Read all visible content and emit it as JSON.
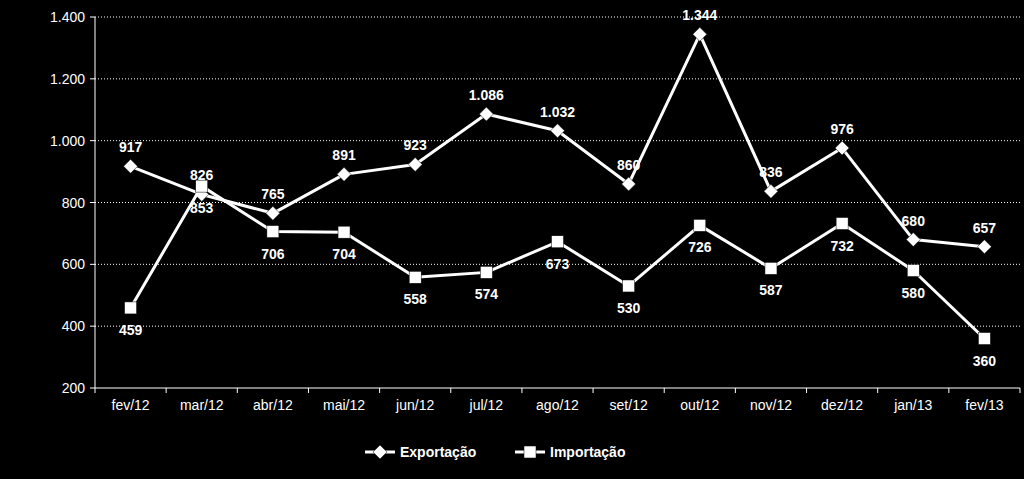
{
  "chart_data": {
    "type": "line",
    "categories": [
      "fev/12",
      "mar/12",
      "abr/12",
      "mai/12",
      "jun/12",
      "jul/12",
      "ago/12",
      "set/12",
      "out/12",
      "nov/12",
      "dez/12",
      "jan/13",
      "fev/13"
    ],
    "series": [
      {
        "name": "Exportação",
        "color": "#ffffff",
        "marker": "diamond",
        "values": [
          917,
          826,
          765,
          891,
          923,
          1086,
          1032,
          860,
          1344,
          836,
          976,
          680,
          657
        ],
        "value_labels": [
          "917",
          "826",
          "765",
          "891",
          "923",
          "1.086",
          "1.032",
          "860",
          "1.344",
          "836",
          "976",
          "680",
          "657"
        ]
      },
      {
        "name": "Importação",
        "color": "#ffffff",
        "marker": "square",
        "values": [
          459,
          853,
          706,
          704,
          558,
          574,
          673,
          530,
          726,
          587,
          732,
          580,
          360
        ]
      }
    ],
    "ylim": [
      200,
      1400
    ],
    "yticks": [
      {
        "value": 1400,
        "label": "1.400"
      },
      {
        "value": 1200,
        "label": "1.200"
      },
      {
        "value": 1000,
        "label": "1.000"
      },
      800,
      600,
      400,
      200
    ],
    "grid": true,
    "legend": "bottom",
    "data_labels": true
  }
}
